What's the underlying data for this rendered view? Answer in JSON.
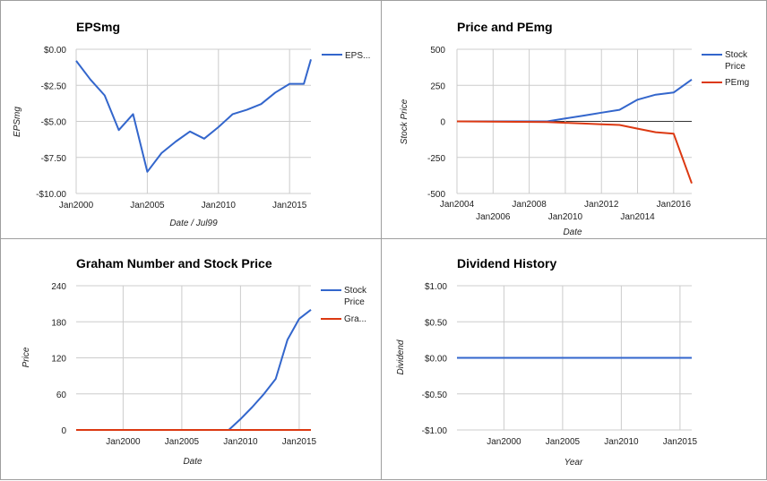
{
  "colors": {
    "blue": "#3366cc",
    "red": "#dc3912"
  },
  "chart_data": [
    {
      "id": "eps",
      "type": "line",
      "title": "EPSmg",
      "xlabel": "Date / Jul99",
      "ylabel": "EPSmg",
      "ylim": [
        -10,
        0
      ],
      "xlim": [
        2000,
        2016.5
      ],
      "yticks": [
        "$0.00",
        "-$2.50",
        "-$5.00",
        "-$7.50",
        "-$10.00"
      ],
      "ytick_values": [
        0,
        -2.5,
        -5,
        -7.5,
        -10
      ],
      "xticks": [
        "Jan2000",
        "Jan2005",
        "Jan2010",
        "Jan2015"
      ],
      "xtick_values": [
        2000,
        2005,
        2010,
        2015
      ],
      "legend": [
        "EPS..."
      ],
      "series": [
        {
          "name": "EPS...",
          "color": "blue",
          "x": [
            2000,
            2001,
            2002,
            2003,
            2004,
            2005,
            2006,
            2007,
            2008,
            2009,
            2010,
            2011,
            2012,
            2013,
            2014,
            2015,
            2016,
            2016.5
          ],
          "values": [
            -0.8,
            -2.1,
            -3.2,
            -5.6,
            -4.5,
            -8.5,
            -7.2,
            -6.4,
            -5.7,
            -6.2,
            -5.4,
            -4.5,
            -4.2,
            -3.8,
            -3.0,
            -2.4,
            -2.4,
            -0.7
          ]
        }
      ],
      "grid": true,
      "legend_position": "right"
    },
    {
      "id": "pe",
      "type": "line",
      "title": "Price and PEmg",
      "xlabel": "Date",
      "ylabel": "Stock Price",
      "ylim": [
        -500,
        500
      ],
      "xlim": [
        2004,
        2017
      ],
      "yticks": [
        "500",
        "250",
        "0",
        "-250",
        "-500"
      ],
      "ytick_values": [
        500,
        250,
        0,
        -250,
        -500
      ],
      "xticks_row1": [
        "Jan2004",
        "Jan2008",
        "Jan2012",
        "Jan2016"
      ],
      "xticks_row1_values": [
        2004,
        2008,
        2012,
        2016
      ],
      "xticks_row2": [
        "Jan2006",
        "Jan2010",
        "Jan2014"
      ],
      "xticks_row2_values": [
        2006,
        2010,
        2014
      ],
      "legend": [
        "Stock Price",
        "PEmg"
      ],
      "series": [
        {
          "name": "Stock Price",
          "color": "blue",
          "x": [
            2004,
            2009,
            2010,
            2011,
            2012,
            2013,
            2014,
            2015,
            2016,
            2017
          ],
          "values": [
            0,
            0,
            20,
            40,
            60,
            80,
            150,
            185,
            200,
            290
          ]
        },
        {
          "name": "PEmg",
          "color": "red",
          "x": [
            2004,
            2009,
            2010,
            2011,
            2012,
            2013,
            2014,
            2015,
            2016,
            2017
          ],
          "values": [
            0,
            -5,
            -10,
            -15,
            -20,
            -25,
            -50,
            -75,
            -85,
            -430
          ]
        }
      ],
      "grid": true,
      "legend_position": "right"
    },
    {
      "id": "graham",
      "type": "line",
      "title": "Graham Number and Stock Price",
      "xlabel": "Date",
      "ylabel": "Price",
      "ylim": [
        0,
        240
      ],
      "xlim": [
        1996,
        2016
      ],
      "yticks": [
        "240",
        "180",
        "120",
        "60",
        "0"
      ],
      "ytick_values": [
        240,
        180,
        120,
        60,
        0
      ],
      "xticks": [
        "Jan2000",
        "Jan2005",
        "Jan2010",
        "Jan2015"
      ],
      "xtick_values": [
        2000,
        2005,
        2010,
        2015
      ],
      "legend": [
        "Stock Price",
        "Gra..."
      ],
      "series": [
        {
          "name": "Stock Price",
          "color": "blue",
          "x": [
            1996,
            2009,
            2010,
            2011,
            2012,
            2013,
            2014,
            2015,
            2016
          ],
          "values": [
            0,
            0,
            18,
            38,
            60,
            85,
            150,
            185,
            200
          ]
        },
        {
          "name": "Gra...",
          "color": "red",
          "x": [
            1996,
            2016
          ],
          "values": [
            0,
            0
          ]
        }
      ],
      "grid": true,
      "legend_position": "right"
    },
    {
      "id": "dividend",
      "type": "line",
      "title": "Dividend History",
      "xlabel": "Year",
      "ylabel": "Dividend",
      "ylim": [
        -1,
        1
      ],
      "xlim": [
        1996,
        2016
      ],
      "yticks": [
        "$1.00",
        "$0.50",
        "$0.00",
        "-$0.50",
        "-$1.00"
      ],
      "ytick_values": [
        1,
        0.5,
        0,
        -0.5,
        -1
      ],
      "xticks": [
        "Jan2000",
        "Jan2005",
        "Jan2010",
        "Jan2015"
      ],
      "xtick_values": [
        2000,
        2005,
        2010,
        2015
      ],
      "legend": [],
      "series": [
        {
          "name": "",
          "color": "blue",
          "x": [
            1996,
            2016
          ],
          "values": [
            0,
            0
          ]
        }
      ],
      "grid": true,
      "legend_position": "none"
    }
  ]
}
